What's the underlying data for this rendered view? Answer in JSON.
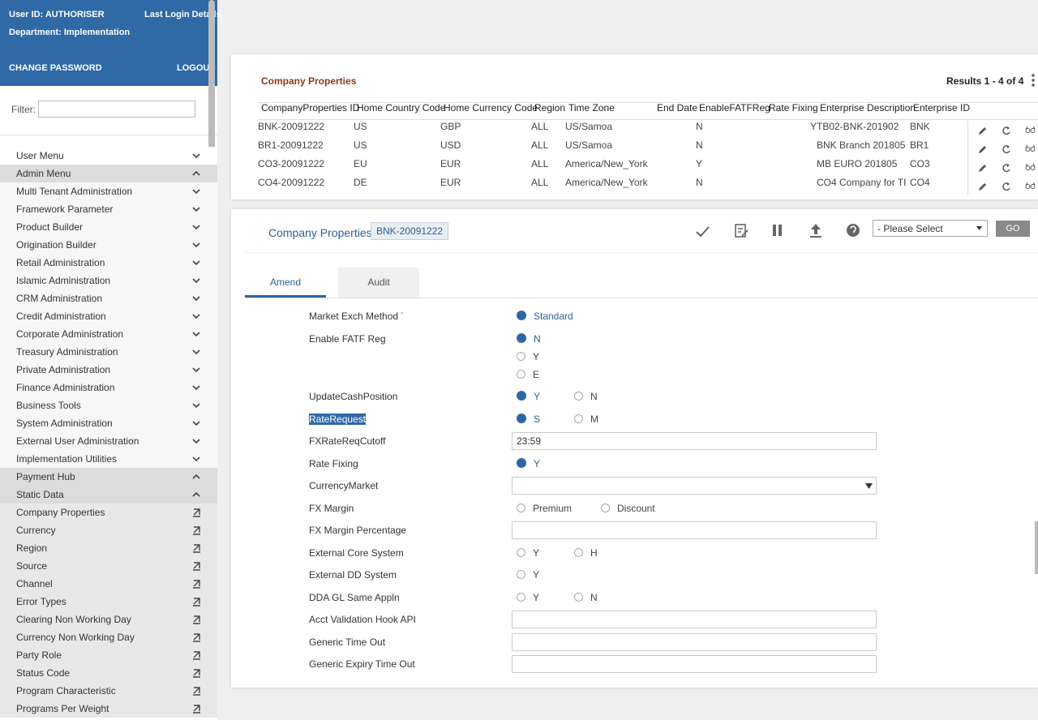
{
  "sidebar": {
    "user_id": "User ID:  AUTHORISER",
    "last_login": "Last Login Details",
    "department": "Department:  Implementation",
    "change_password": "CHANGE PASSWORD",
    "logout": "LOGOUT",
    "filter_label": "Filter:",
    "menu": [
      {
        "label": "User Menu",
        "icon": "down"
      },
      {
        "label": "Admin Menu",
        "icon": "up"
      },
      {
        "label": "Multi Tenant Administration",
        "icon": "down"
      },
      {
        "label": "Framework Parameter",
        "icon": "down"
      },
      {
        "label": "Product Builder",
        "icon": "down"
      },
      {
        "label": "Origination Builder",
        "icon": "down"
      },
      {
        "label": "Retail Administration",
        "icon": "down"
      },
      {
        "label": "Islamic Administration",
        "icon": "down"
      },
      {
        "label": "CRM Administration",
        "icon": "down"
      },
      {
        "label": "Credit Administration",
        "icon": "down"
      },
      {
        "label": "Corporate Administration",
        "icon": "down"
      },
      {
        "label": "Treasury Administration",
        "icon": "down"
      },
      {
        "label": "Private Administration",
        "icon": "down"
      },
      {
        "label": "Finance Administration",
        "icon": "down"
      },
      {
        "label": "Business Tools",
        "icon": "down"
      },
      {
        "label": "System Administration",
        "icon": "down"
      },
      {
        "label": "External User Administration",
        "icon": "down"
      },
      {
        "label": "Implementation Utilities",
        "icon": "down"
      },
      {
        "label": "Payment Hub",
        "icon": "up"
      },
      {
        "label": "Static Data",
        "icon": "up"
      },
      {
        "label": "Company Properties",
        "icon": "link"
      },
      {
        "label": "Currency",
        "icon": "link"
      },
      {
        "label": "Region",
        "icon": "link"
      },
      {
        "label": "Source",
        "icon": "link"
      },
      {
        "label": "Channel",
        "icon": "link"
      },
      {
        "label": "Error Types",
        "icon": "link"
      },
      {
        "label": "Clearing Non Working Day",
        "icon": "link"
      },
      {
        "label": "Currency Non Working Day",
        "icon": "link"
      },
      {
        "label": "Party Role",
        "icon": "link"
      },
      {
        "label": "Status Code",
        "icon": "link"
      },
      {
        "label": "Program Characteristic",
        "icon": "link"
      },
      {
        "label": "Programs Per Weight",
        "icon": "link"
      }
    ]
  },
  "table": {
    "title": "Company Properties",
    "results": "Results 1 - 4 of 4",
    "columns": [
      "CompanyProperties ID",
      "Home Country Code",
      "Home Currency Code",
      "Region",
      "Time Zone",
      "End Date",
      "EnableFATFReg",
      "Rate Fixing",
      "Enterprise Description",
      "Enterprise ID"
    ],
    "rows": [
      [
        "BNK-20091222",
        "US",
        "GBP",
        "ALL",
        "US/Samoa",
        null,
        "N",
        "Y",
        "TB02-BNK-201902",
        "BNK"
      ],
      [
        "BR1-20091222",
        "US",
        "USD",
        "ALL",
        "US/Samoa",
        null,
        "N",
        null,
        "BNK Branch 201805",
        "BR1"
      ],
      [
        "CO3-20091222",
        "EU",
        "EUR",
        "ALL",
        "America/New_York",
        null,
        "Y",
        null,
        "MB EURO 201805",
        "CO3"
      ],
      [
        "CO4-20091222",
        "DE",
        "EUR",
        "ALL",
        "America/New_York",
        null,
        "N",
        null,
        "CO4 Company for TI",
        "CO4"
      ]
    ]
  },
  "form": {
    "title": "Company Properties",
    "record_id": "BNK-20091222",
    "select": "- Please Select",
    "go": "GO",
    "tabs": [
      "Amend",
      "Audit"
    ],
    "fields": [
      {
        "label": "Market Exch Method",
        "mark": "*",
        "type": "radio",
        "options": [
          "Standard"
        ],
        "selected": 0
      },
      {
        "label": "Enable FATF Reg",
        "type": "radio",
        "layout": "vertical",
        "options": [
          "N",
          "Y",
          "E"
        ],
        "selected": 0
      },
      {
        "label": "UpdateCashPosition",
        "type": "radio",
        "options": [
          "Y",
          "N"
        ],
        "selected": 0
      },
      {
        "label": "RateRequest",
        "type": "radio",
        "options": [
          "S",
          "M"
        ],
        "selected": 0,
        "highlighted": true
      },
      {
        "label": "FXRateReqCutoff",
        "type": "text",
        "value": "23:59"
      },
      {
        "label": "Rate Fixing",
        "type": "radio",
        "options": [
          "Y"
        ],
        "selected": 0
      },
      {
        "label": "CurrencyMarket",
        "type": "select"
      },
      {
        "label": "FX Margin",
        "type": "radio",
        "options": [
          "Premium",
          "Discount"
        ]
      },
      {
        "label": "FX Margin Percentage",
        "type": "text"
      },
      {
        "label": "External Core System",
        "type": "radio",
        "options": [
          "Y",
          "H"
        ]
      },
      {
        "label": "External DD System",
        "type": "radio",
        "options": [
          "Y"
        ]
      },
      {
        "label": "DDA GL Same Appln",
        "type": "radio",
        "options": [
          "Y",
          "N"
        ]
      },
      {
        "label": "Acct Validation Hook API",
        "type": "text"
      },
      {
        "label": "Generic Time Out",
        "type": "text"
      },
      {
        "label": "Generic Expiry Time Out",
        "type": "text"
      }
    ]
  }
}
